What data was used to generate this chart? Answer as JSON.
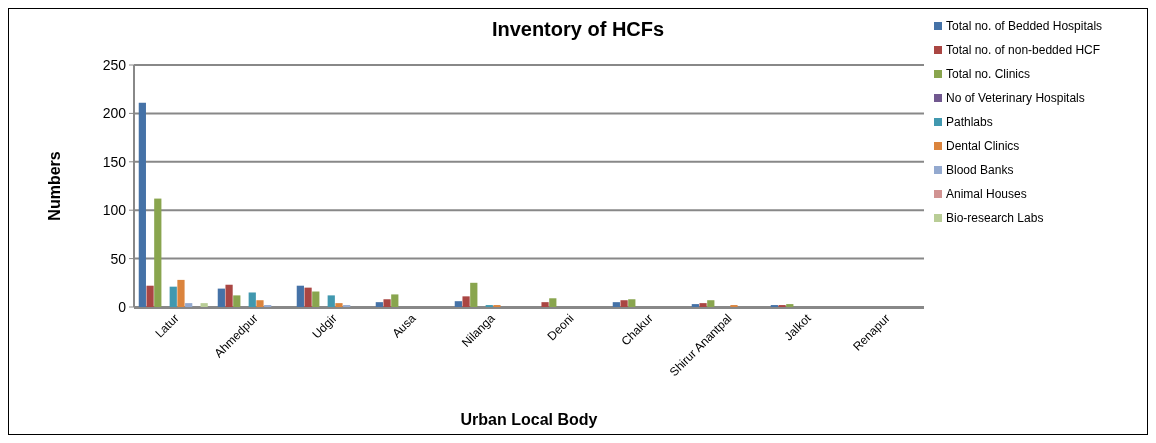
{
  "chart_data": {
    "type": "bar",
    "title": "Inventory of HCFs",
    "xlabel": "Urban Local Body",
    "ylabel": "Numbers",
    "categories": [
      "Latur",
      "Ahmedpur",
      "Udgir",
      "Ausa",
      "Nilanga",
      "Deoni",
      "Chakur",
      "Shirur Anantpal",
      "Jalkot",
      "Renapur"
    ],
    "series": [
      {
        "name": "Total no. of Bedded Hospitals",
        "color": "#4572a7",
        "values": [
          211,
          19,
          22,
          5,
          6,
          0,
          5,
          3,
          2,
          0
        ]
      },
      {
        "name": "Total no. of non-bedded HCF",
        "color": "#aa4643",
        "values": [
          22,
          23,
          20,
          8,
          11,
          5,
          7,
          4,
          2,
          0
        ]
      },
      {
        "name": "Total no. Clinics",
        "color": "#89a54e",
        "values": [
          112,
          12,
          16,
          13,
          25,
          9,
          8,
          7,
          3,
          0
        ]
      },
      {
        "name": "No of Veterinary Hospitals",
        "color": "#71588f",
        "values": [
          0,
          0,
          0,
          0,
          0,
          0,
          0,
          0,
          0,
          0
        ]
      },
      {
        "name": "Pathlabs",
        "color": "#4198af",
        "values": [
          21,
          15,
          12,
          0,
          2,
          0,
          0,
          0,
          0,
          0
        ]
      },
      {
        "name": "Dental Clinics",
        "color": "#db843d",
        "values": [
          28,
          7,
          4,
          0,
          2,
          0,
          0,
          2,
          0,
          0
        ]
      },
      {
        "name": "Blood Banks",
        "color": "#93a9cf",
        "values": [
          4,
          2,
          2,
          0,
          0,
          0,
          0,
          0,
          0,
          0
        ]
      },
      {
        "name": "Animal Houses",
        "color": "#d19392",
        "values": [
          0,
          0,
          0,
          0,
          0,
          0,
          0,
          0,
          0,
          0
        ]
      },
      {
        "name": "Bio-research Labs",
        "color": "#b9cd96",
        "values": [
          4,
          0,
          0,
          0,
          0,
          0,
          0,
          0,
          0,
          0
        ]
      }
    ],
    "ylim": [
      0,
      250
    ],
    "yticks": [
      0,
      50,
      100,
      150,
      200,
      250
    ],
    "grid": "y",
    "legend": "top right"
  }
}
